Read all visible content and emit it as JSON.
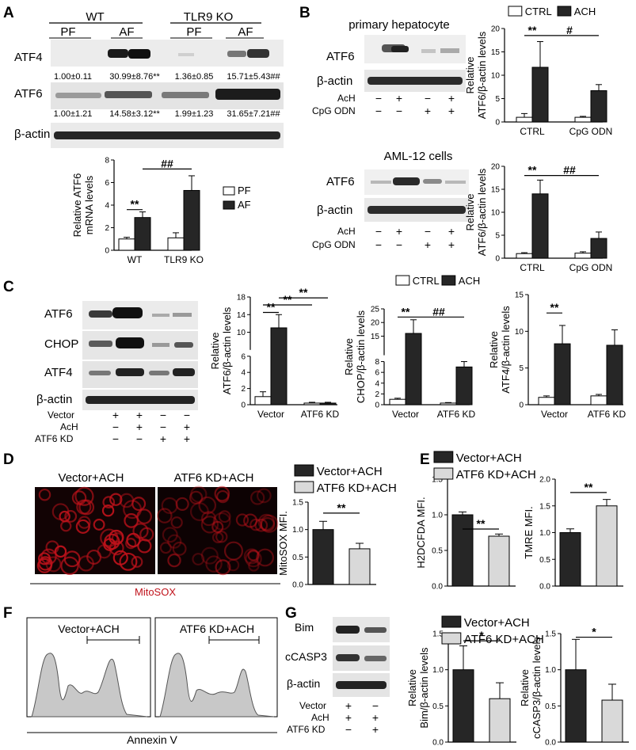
{
  "panelA": {
    "label": "A",
    "group1": "WT",
    "group2": "TLR9 KO",
    "lanes": [
      "PF",
      "AF",
      "PF",
      "AF"
    ],
    "rows": [
      {
        "name": "ATF4",
        "values": [
          "1.00±0.11",
          "30.99±8.76**",
          "1.36±0.85",
          "15.71±5.43##"
        ]
      },
      {
        "name": "ATF6",
        "values": [
          "1.00±1.21",
          "14.58±3.12**",
          "1.99±1.23",
          "31.65±7.21##"
        ]
      },
      {
        "name": "β-actin",
        "values": []
      }
    ]
  },
  "panelB": {
    "label": "B",
    "top_title": "primary hepatocyte",
    "bottom_title": "AML-12 cells",
    "blot_rows": [
      "ATF6",
      "β-actin"
    ],
    "treat_labels": [
      "AcH",
      "CpG ODN"
    ],
    "treat_signs": [
      [
        "−",
        "+",
        "−",
        "+"
      ],
      [
        "−",
        "−",
        "+",
        "+"
      ]
    ]
  },
  "panelC": {
    "label": "C",
    "blot_rows": [
      "ATF6",
      "CHOP",
      "ATF4",
      "β-actin"
    ],
    "treat_labels": [
      "Vector",
      "AcH",
      "ATF6 KD"
    ],
    "treat_signs": [
      [
        "+",
        "+",
        "−",
        "−"
      ],
      [
        "−",
        "+",
        "−",
        "+"
      ],
      [
        "−",
        "−",
        "+",
        "+"
      ]
    ]
  },
  "panelD": {
    "label": "D",
    "image_titles": [
      "Vector+ACH",
      "ATF6 KD+ACH"
    ],
    "image_caption": "MitoSOX"
  },
  "panelE": {
    "label": "E"
  },
  "panelF": {
    "label": "F",
    "plot_titles": [
      "Vector+ACH",
      "ATF6 KD+ACH"
    ],
    "xlabel": "Annexin V"
  },
  "panelG": {
    "label": "G",
    "blot_rows": [
      "Bim",
      "cCASP3",
      "β-actin"
    ],
    "treat_labels": [
      "Vector",
      "AcH",
      "ATF6 KD"
    ],
    "treat_signs": [
      [
        "+",
        "−"
      ],
      [
        "+",
        "+"
      ],
      [
        "−",
        "+"
      ]
    ]
  },
  "colors": {
    "dark_bar": "#262626",
    "light_bar": "#d9d9d9",
    "white_bar": "#ffffff",
    "red_stain": "#c0121b",
    "flow_fill": "#c8c8c8"
  },
  "chart_data": [
    {
      "id": "A-mrna",
      "type": "bar",
      "ylabel": "Relative ATF6\nmRNA levels",
      "ylim": [
        0,
        8
      ],
      "yticks": [
        0,
        2,
        4,
        6,
        8
      ],
      "categories": [
        "WT",
        "TLR9 KO"
      ],
      "series": [
        {
          "name": "PF",
          "fill": "white",
          "values": [
            1.0,
            1.1
          ],
          "errors": [
            0.15,
            0.45
          ]
        },
        {
          "name": "AF",
          "fill": "dark",
          "values": [
            2.9,
            5.3
          ],
          "errors": [
            0.5,
            1.3
          ]
        }
      ],
      "annotations": [
        {
          "text": "**",
          "from": [
            0,
            0
          ],
          "to": [
            0,
            1
          ],
          "level": 3.6
        },
        {
          "text": "##",
          "from": [
            0,
            1
          ],
          "to": [
            1,
            1
          ],
          "level": 7.2
        }
      ],
      "legend": "right"
    },
    {
      "id": "B-top",
      "type": "bar",
      "ylabel": "Relative\nATF6/β-actin levels",
      "ylim": [
        0,
        20
      ],
      "yticks": [
        0,
        5,
        10,
        15,
        20
      ],
      "categories": [
        "CTRL",
        "CpG ODN"
      ],
      "series": [
        {
          "name": "CTRL",
          "fill": "white",
          "values": [
            1.0,
            1.0
          ],
          "errors": [
            0.8,
            0.2
          ]
        },
        {
          "name": "ACH",
          "fill": "dark",
          "values": [
            11.7,
            6.7
          ],
          "errors": [
            5.5,
            1.3
          ]
        }
      ],
      "annotations": [
        {
          "text": "**",
          "from": [
            0,
            0
          ],
          "to": [
            0,
            1
          ],
          "level": 18.5
        },
        {
          "text": "#",
          "from": [
            0,
            1
          ],
          "to": [
            1,
            1
          ],
          "level": 18.5
        }
      ],
      "legend": "top"
    },
    {
      "id": "B-bottom",
      "type": "bar",
      "ylabel": "Relative\nATF6/β-actin levels",
      "ylim": [
        0,
        20
      ],
      "yticks": [
        0,
        5,
        10,
        15,
        20
      ],
      "categories": [
        "CTRL",
        "CpG ODN"
      ],
      "series": [
        {
          "name": "CTRL",
          "fill": "white",
          "values": [
            1.0,
            1.1
          ],
          "errors": [
            0.2,
            0.3
          ]
        },
        {
          "name": "ACH",
          "fill": "dark",
          "values": [
            14.0,
            4.3
          ],
          "errors": [
            3.0,
            1.4
          ]
        }
      ],
      "annotations": [
        {
          "text": "**",
          "from": [
            0,
            0
          ],
          "to": [
            0,
            1
          ],
          "level": 18.0
        },
        {
          "text": "##",
          "from": [
            0,
            1
          ],
          "to": [
            1,
            1
          ],
          "level": 18.0
        }
      ]
    },
    {
      "id": "C-atf6",
      "type": "bar",
      "ylabel": "Relative\nATF6/β-actin levels",
      "ylim": [
        0,
        18
      ],
      "yticks": [
        0,
        2,
        4,
        6,
        10,
        14,
        18
      ],
      "broken_axis": {
        "low": [
          0,
          6
        ],
        "high": [
          6,
          18
        ]
      },
      "categories": [
        "Vector",
        "ATF6 KD"
      ],
      "series": [
        {
          "name": "CTRL",
          "fill": "white",
          "values": [
            1.0,
            0.2
          ],
          "errors": [
            0.6,
            0.1
          ]
        },
        {
          "name": "ACH",
          "fill": "dark",
          "values": [
            11.0,
            0.2
          ],
          "errors": [
            3.0,
            0.1
          ]
        }
      ],
      "annotations": [
        {
          "text": "**",
          "from": [
            0,
            0
          ],
          "to": [
            0,
            1
          ],
          "level": 14.5
        },
        {
          "text": "**",
          "from": [
            0,
            0
          ],
          "to": [
            1,
            0
          ],
          "level": 16.2
        },
        {
          "text": "**",
          "from": [
            0,
            1
          ],
          "to": [
            1,
            1
          ],
          "level": 17.8
        }
      ],
      "legend": "top"
    },
    {
      "id": "C-chop",
      "type": "bar",
      "ylabel": "Relative\nCHOP/β-actin levels",
      "ylim": [
        0,
        25
      ],
      "yticks": [
        0,
        2,
        4,
        6,
        8,
        15,
        20,
        25
      ],
      "broken_axis": {
        "low": [
          0,
          8
        ],
        "high": [
          8,
          25
        ]
      },
      "categories": [
        "Vector",
        "ATF6 KD"
      ],
      "series": [
        {
          "name": "CTRL",
          "fill": "white",
          "values": [
            1.0,
            0.3
          ],
          "errors": [
            0.2,
            0.1
          ]
        },
        {
          "name": "ACH",
          "fill": "dark",
          "values": [
            16.0,
            7.0
          ],
          "errors": [
            5.0,
            1.0
          ]
        }
      ],
      "annotations": [
        {
          "text": "**",
          "from": [
            0,
            0
          ],
          "to": [
            0,
            1
          ],
          "level": 22.0
        },
        {
          "text": "##",
          "from": [
            0,
            1
          ],
          "to": [
            1,
            1
          ],
          "level": 22.0
        }
      ]
    },
    {
      "id": "C-atf4",
      "type": "bar",
      "ylabel": "Relative\nATF4/β-actin levels",
      "ylim": [
        0,
        15
      ],
      "yticks": [
        0,
        5,
        10,
        15
      ],
      "categories": [
        "Vector",
        "ATF6 KD"
      ],
      "series": [
        {
          "name": "CTRL",
          "fill": "white",
          "values": [
            1.0,
            1.2
          ],
          "errors": [
            0.2,
            0.2
          ]
        },
        {
          "name": "ACH",
          "fill": "dark",
          "values": [
            8.3,
            8.1
          ],
          "errors": [
            2.5,
            2.1
          ]
        }
      ],
      "annotations": [
        {
          "text": "**",
          "from": [
            0,
            0
          ],
          "to": [
            0,
            1
          ],
          "level": 12.5
        }
      ]
    },
    {
      "id": "D-mitosox",
      "type": "bar",
      "ylabel": "MitoSOX MFI.",
      "ylim": [
        0,
        1.5
      ],
      "yticks": [
        0,
        0.5,
        1.0,
        1.5
      ],
      "categories": [
        "Vector+ACH",
        "ATF6 KD+ACH"
      ],
      "series": [
        {
          "name": "",
          "fills": [
            "dark",
            "light"
          ],
          "values": [
            1.0,
            0.65
          ],
          "errors": [
            0.15,
            0.1
          ]
        }
      ],
      "annotations": [
        {
          "text": "**",
          "from": [
            0,
            0
          ],
          "to": [
            1,
            0
          ],
          "level": 1.3
        }
      ],
      "legend": "top"
    },
    {
      "id": "E-h2dcfda",
      "type": "bar",
      "ylabel": "H2DCFDA MFI.",
      "ylim": [
        0,
        1.5
      ],
      "yticks": [
        0,
        0.5,
        1.0,
        1.5
      ],
      "categories": [
        "Vector+ACH",
        "ATF6 KD+ACH"
      ],
      "series": [
        {
          "name": "",
          "fills": [
            "dark",
            "light"
          ],
          "values": [
            1.0,
            0.7
          ],
          "errors": [
            0.04,
            0.03
          ]
        }
      ],
      "annotations": [
        {
          "text": "**",
          "from": [
            0,
            0
          ],
          "to": [
            1,
            0
          ],
          "level": 0.8
        }
      ],
      "legend": "top"
    },
    {
      "id": "E-tmre",
      "type": "bar",
      "ylabel": "TMRE MFI.",
      "ylim": [
        0,
        2.0
      ],
      "yticks": [
        0,
        0.5,
        1.0,
        1.5,
        2.0
      ],
      "categories": [
        "Vector+ACH",
        "ATF6 KD+ACH"
      ],
      "series": [
        {
          "name": "",
          "fills": [
            "dark",
            "light"
          ],
          "values": [
            1.0,
            1.5
          ],
          "errors": [
            0.07,
            0.12
          ]
        }
      ],
      "annotations": [
        {
          "text": "**",
          "from": [
            0,
            0
          ],
          "to": [
            1,
            0
          ],
          "level": 1.75
        }
      ]
    },
    {
      "id": "G-bim",
      "type": "bar",
      "ylabel": "Relative\nBim/β-actin levels",
      "ylim": [
        0,
        1.5
      ],
      "yticks": [
        0,
        0.5,
        1.0,
        1.5
      ],
      "categories": [
        "Vector+ACH",
        "ATF6 KD+ACH"
      ],
      "series": [
        {
          "name": "",
          "fills": [
            "dark",
            "light"
          ],
          "values": [
            1.0,
            0.6
          ],
          "errors": [
            0.33,
            0.22
          ]
        }
      ],
      "annotations": [
        {
          "text": "*",
          "from": [
            0,
            0
          ],
          "to": [
            1,
            0
          ],
          "level": 1.4
        }
      ],
      "legend": "top"
    },
    {
      "id": "G-ccasp3",
      "type": "bar",
      "ylabel": "Relative\ncCASP3/β-actin levels",
      "ylim": [
        0,
        1.5
      ],
      "yticks": [
        0,
        0.5,
        1.0,
        1.5
      ],
      "categories": [
        "Vector+ACH",
        "ATF6 KD+ACH"
      ],
      "series": [
        {
          "name": "",
          "fills": [
            "dark",
            "light"
          ],
          "values": [
            1.0,
            0.58
          ],
          "errors": [
            0.42,
            0.22
          ]
        }
      ],
      "annotations": [
        {
          "text": "*",
          "from": [
            0,
            0
          ],
          "to": [
            1,
            0
          ],
          "level": 1.45
        }
      ]
    }
  ],
  "legends": {
    "A": [
      {
        "name": "PF",
        "fill": "white"
      },
      {
        "name": "AF",
        "fill": "dark"
      }
    ],
    "B": [
      {
        "name": "CTRL",
        "fill": "white"
      },
      {
        "name": "ACH",
        "fill": "dark"
      }
    ],
    "C": [
      {
        "name": "CTRL",
        "fill": "white"
      },
      {
        "name": "ACH",
        "fill": "dark"
      }
    ],
    "D": [
      {
        "name": "Vector+ACH",
        "fill": "dark"
      },
      {
        "name": "ATF6 KD+ACH",
        "fill": "light"
      }
    ],
    "E": [
      {
        "name": "Vector+ACH",
        "fill": "dark"
      },
      {
        "name": "ATF6 KD+ACH",
        "fill": "light"
      }
    ],
    "G": [
      {
        "name": "Vector+ACH",
        "fill": "dark"
      },
      {
        "name": "ATF6 KD+ACH",
        "fill": "light"
      }
    ]
  }
}
